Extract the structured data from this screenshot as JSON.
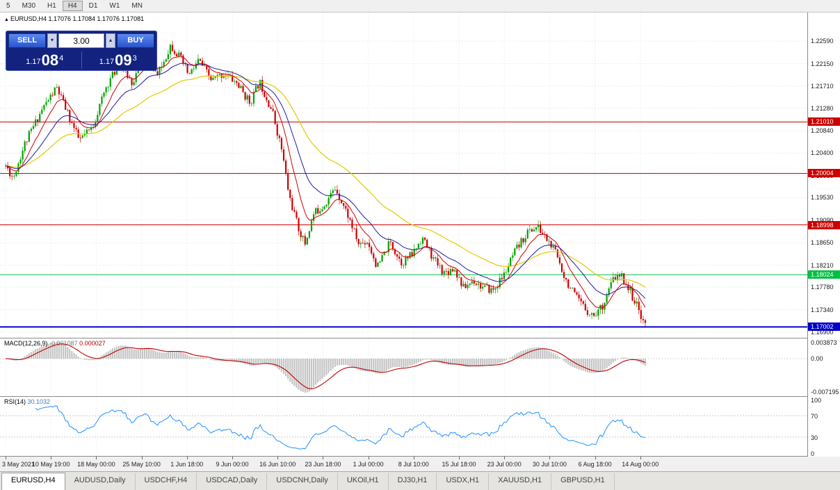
{
  "toolbar": {
    "periods": [
      {
        "label": "5",
        "active": false
      },
      {
        "label": "M30",
        "active": false
      },
      {
        "label": "H1",
        "active": false
      },
      {
        "label": "H4",
        "active": true
      },
      {
        "label": "D1",
        "active": false
      },
      {
        "label": "W1",
        "active": false
      },
      {
        "label": "MN",
        "active": false
      }
    ]
  },
  "chart": {
    "collapse_icon": "▲",
    "ohlc_label": "EURUSD,H4 1.17076 1.17084 1.17076 1.17081"
  },
  "trade_panel": {
    "sell_label": "SELL",
    "buy_label": "BUY",
    "volume": "3.00",
    "bid": {
      "prefix": "1.17",
      "big": "08",
      "sup": "4"
    },
    "ask": {
      "prefix": "1.17",
      "big": "09",
      "sup": "3"
    }
  },
  "colors": {
    "up": "#00a000",
    "down": "#cc0000",
    "ma_fast": "#d00000",
    "ma_mid": "#1a1aa6",
    "ma_slow": "#e3c800",
    "macd_hist": "#c4c4c4",
    "macd_signal": "#c00000",
    "rsi": "#1e90ff",
    "grid": "#dcdcdc",
    "vgrid": "#e6e6e6"
  },
  "hlines": [
    {
      "price": 1.2101,
      "label": "1.21010",
      "color": "#cc0000",
      "width": 1
    },
    {
      "price": 1.20004,
      "label": "1.20004",
      "color": "#cc0000",
      "width": 1
    },
    {
      "price": 1.18998,
      "label": "1.18998",
      "color": "#cc0000",
      "width": 1
    },
    {
      "price": 1.18024,
      "label": "1.18024",
      "color": "#00c040",
      "width": 1
    },
    {
      "price": 1.17002,
      "label": "1.17002",
      "color": "#0000c8",
      "width": 2
    }
  ],
  "macd_panel": {
    "name": "MACD(12,26,9)",
    "main_value": "-0.001087",
    "signal_value": "0.000027",
    "scale_labels": [
      "0.003873",
      "0.00",
      "-0.007195"
    ]
  },
  "rsi_panel": {
    "name": "RSI(14)",
    "value": "30.1032",
    "scale_labels": [
      "100",
      "70",
      "30",
      "0"
    ],
    "levels": [
      70,
      30
    ]
  },
  "time_axis": {
    "labels": [
      "3 May 2021",
      "10 May 19:00",
      "18 May 00:00",
      "25 May 10:00",
      "1 Jun 18:00",
      "9 Jun 00:00",
      "16 Jun 10:00",
      "23 Jun 18:00",
      "1 Jul 00:00",
      "8 Jul 10:00",
      "15 Jul 18:00",
      "23 Jul 00:00",
      "30 Jul 10:00",
      "6 Aug 18:00",
      "14 Aug 00:00"
    ]
  },
  "tabs": [
    {
      "label": "EURUSD,H4",
      "active": true
    },
    {
      "label": "AUDUSD,Daily",
      "active": false
    },
    {
      "label": "USDCHF,H4",
      "active": false
    },
    {
      "label": "USDCAD,Daily",
      "active": false
    },
    {
      "label": "USDCNH,Daily",
      "active": false
    },
    {
      "label": "UKOil,H1",
      "active": false
    },
    {
      "label": "DJ30,H1",
      "active": false
    },
    {
      "label": "USDX,H1",
      "active": false
    },
    {
      "label": "XAUUSD,H1",
      "active": false
    },
    {
      "label": "GBPUSD,H1",
      "active": false
    }
  ],
  "chart_data": {
    "type": "candlestick",
    "symbol": "EURUSD",
    "timeframe": "H4",
    "last_close": 1.17081,
    "ohlc_current": {
      "open": 1.17076,
      "high": 1.17084,
      "low": 1.17076,
      "close": 1.17081
    },
    "ylim": [
      1.1679,
      1.2315
    ],
    "price_scale_labels": [
      "1.22590",
      "1.22150",
      "1.21710",
      "1.21280",
      "1.20840",
      "1.20400",
      "1.19960",
      "1.19530",
      "1.19090",
      "1.18650",
      "1.18210",
      "1.17780",
      "1.17340",
      "1.16900"
    ],
    "candle_count": 300,
    "volatility": 0.0017,
    "seed": 11,
    "ma_periods": {
      "fast": 10,
      "mid": 24,
      "slow": 55
    },
    "indicators": {
      "macd": {
        "fast": 12,
        "slow": 26,
        "signal": 9,
        "current_main": -0.001087,
        "current_signal": 2.7e-05
      },
      "rsi": {
        "period": 14,
        "current": 30.1032,
        "levels": [
          70,
          30
        ]
      }
    },
    "price_anchors": [
      [
        0.0,
        1.2015
      ],
      [
        0.012,
        1.1992
      ],
      [
        0.03,
        1.2058
      ],
      [
        0.058,
        1.2128
      ],
      [
        0.08,
        1.2168
      ],
      [
        0.097,
        1.2118
      ],
      [
        0.115,
        1.2065
      ],
      [
        0.135,
        1.2088
      ],
      [
        0.158,
        1.2172
      ],
      [
        0.178,
        1.2215
      ],
      [
        0.198,
        1.2178
      ],
      [
        0.218,
        1.2232
      ],
      [
        0.238,
        1.2192
      ],
      [
        0.258,
        1.2252
      ],
      [
        0.272,
        1.2228
      ],
      [
        0.287,
        1.2192
      ],
      [
        0.302,
        1.2222
      ],
      [
        0.322,
        1.2182
      ],
      [
        0.342,
        1.2196
      ],
      [
        0.362,
        1.2176
      ],
      [
        0.382,
        1.2138
      ],
      [
        0.397,
        1.218
      ],
      [
        0.417,
        1.2122
      ],
      [
        0.432,
        1.2045
      ],
      [
        0.443,
        1.1958
      ],
      [
        0.457,
        1.1896
      ],
      [
        0.468,
        1.1862
      ],
      [
        0.482,
        1.1922
      ],
      [
        0.497,
        1.1938
      ],
      [
        0.516,
        1.1972
      ],
      [
        0.536,
        1.1916
      ],
      [
        0.552,
        1.1862
      ],
      [
        0.566,
        1.1868
      ],
      [
        0.581,
        1.1816
      ],
      [
        0.601,
        1.1866
      ],
      [
        0.619,
        1.1826
      ],
      [
        0.636,
        1.1842
      ],
      [
        0.651,
        1.1876
      ],
      [
        0.669,
        1.1832
      ],
      [
        0.686,
        1.1806
      ],
      [
        0.701,
        1.1816
      ],
      [
        0.716,
        1.1776
      ],
      [
        0.731,
        1.1792
      ],
      [
        0.747,
        1.1776
      ],
      [
        0.763,
        1.1772
      ],
      [
        0.779,
        1.1802
      ],
      [
        0.796,
        1.1846
      ],
      [
        0.816,
        1.1886
      ],
      [
        0.831,
        1.1896
      ],
      [
        0.846,
        1.1872
      ],
      [
        0.861,
        1.1842
      ],
      [
        0.876,
        1.1792
      ],
      [
        0.891,
        1.1758
      ],
      [
        0.906,
        1.1736
      ],
      [
        0.919,
        1.1722
      ],
      [
        0.933,
        1.1742
      ],
      [
        0.951,
        1.1796
      ],
      [
        0.964,
        1.1798
      ],
      [
        0.977,
        1.1768
      ],
      [
        0.99,
        1.1732
      ],
      [
        1.0,
        1.1706
      ]
    ]
  }
}
